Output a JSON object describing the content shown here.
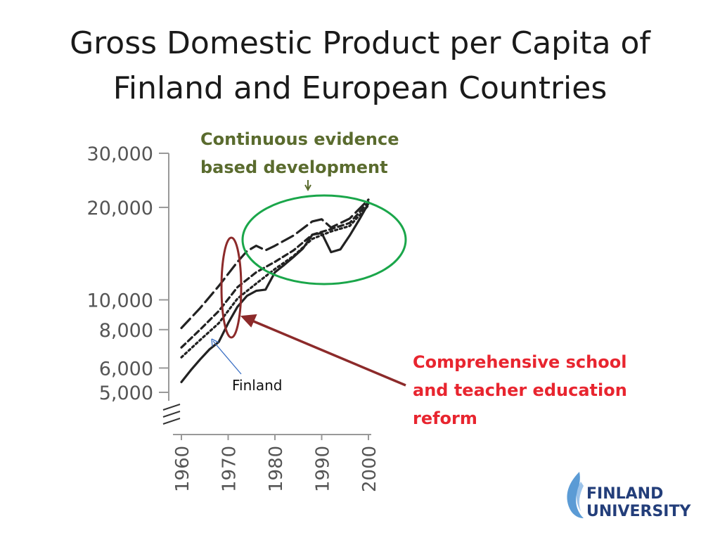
{
  "slide": {
    "title_line1": "Gross Domestic Product per Capita of",
    "title_line2": "Finland and European Countries"
  },
  "annotations": {
    "green_line1": "Continuous evidence",
    "green_line2": "based development",
    "red_line1": "Comprehensive school",
    "red_line2": "and teacher education",
    "red_line3": "reform",
    "finland_label": "Finland"
  },
  "logo": {
    "line1": "FINLAND",
    "line2": "UNIVERSITY"
  },
  "colors": {
    "green_annotation": "#5a6b2e",
    "green_ellipse": "#1aa64a",
    "red_annotation": "#e8252f",
    "red_shape": "#8c2a2a",
    "finland_arrow": "#3a6fc4",
    "logo_blue": "#233e7a"
  },
  "chart_data": {
    "type": "line",
    "y_scale": "log",
    "ylim": [
      5000,
      30000
    ],
    "xlim": [
      1960,
      2000
    ],
    "y_ticks": [
      {
        "value": 30000,
        "label": "30,000"
      },
      {
        "value": 20000,
        "label": "20,000"
      },
      {
        "value": 10000,
        "label": "10,000"
      },
      {
        "value": 8000,
        "label": "8,000"
      },
      {
        "value": 6000,
        "label": "6,000"
      },
      {
        "value": 5000,
        "label": "5,000"
      }
    ],
    "x_ticks": [
      {
        "value": 1960,
        "label": "1960"
      },
      {
        "value": 1970,
        "label": "1970"
      },
      {
        "value": 1980,
        "label": "1980"
      },
      {
        "value": 1990,
        "label": "1990"
      },
      {
        "value": 2000,
        "label": "2000"
      }
    ],
    "series": [
      {
        "name": "Finland",
        "style": "solid",
        "points": [
          [
            1960,
            5400
          ],
          [
            1962,
            5900
          ],
          [
            1964,
            6400
          ],
          [
            1966,
            6900
          ],
          [
            1968,
            7300
          ],
          [
            1970,
            8400
          ],
          [
            1972,
            9500
          ],
          [
            1974,
            10300
          ],
          [
            1976,
            10700
          ],
          [
            1978,
            10800
          ],
          [
            1980,
            12300
          ],
          [
            1982,
            13000
          ],
          [
            1984,
            13800
          ],
          [
            1986,
            14700
          ],
          [
            1988,
            16300
          ],
          [
            1990,
            16500
          ],
          [
            1992,
            14300
          ],
          [
            1994,
            14600
          ],
          [
            1996,
            16200
          ],
          [
            1998,
            18200
          ],
          [
            2000,
            20600
          ]
        ]
      },
      {
        "style": "dotted",
        "points": [
          [
            1960,
            6500
          ],
          [
            1964,
            7400
          ],
          [
            1968,
            8400
          ],
          [
            1972,
            10100
          ],
          [
            1976,
            11300
          ],
          [
            1980,
            12600
          ],
          [
            1984,
            13900
          ],
          [
            1988,
            15800
          ],
          [
            1992,
            16700
          ],
          [
            1996,
            17400
          ],
          [
            2000,
            20300
          ]
        ]
      },
      {
        "style": "dashed",
        "points": [
          [
            1960,
            7000
          ],
          [
            1964,
            8000
          ],
          [
            1968,
            9200
          ],
          [
            1972,
            11000
          ],
          [
            1976,
            12300
          ],
          [
            1980,
            13300
          ],
          [
            1984,
            14500
          ],
          [
            1988,
            16300
          ],
          [
            1992,
            17000
          ],
          [
            1996,
            17800
          ],
          [
            2000,
            20800
          ]
        ]
      },
      {
        "style": "long-dash",
        "points": [
          [
            1960,
            8100
          ],
          [
            1964,
            9400
          ],
          [
            1968,
            11100
          ],
          [
            1972,
            13300
          ],
          [
            1974,
            14400
          ],
          [
            1976,
            15000
          ],
          [
            1978,
            14500
          ],
          [
            1980,
            15000
          ],
          [
            1984,
            16200
          ],
          [
            1988,
            18000
          ],
          [
            1990,
            18300
          ],
          [
            1992,
            17200
          ],
          [
            1996,
            18400
          ],
          [
            2000,
            21200
          ]
        ]
      }
    ]
  }
}
